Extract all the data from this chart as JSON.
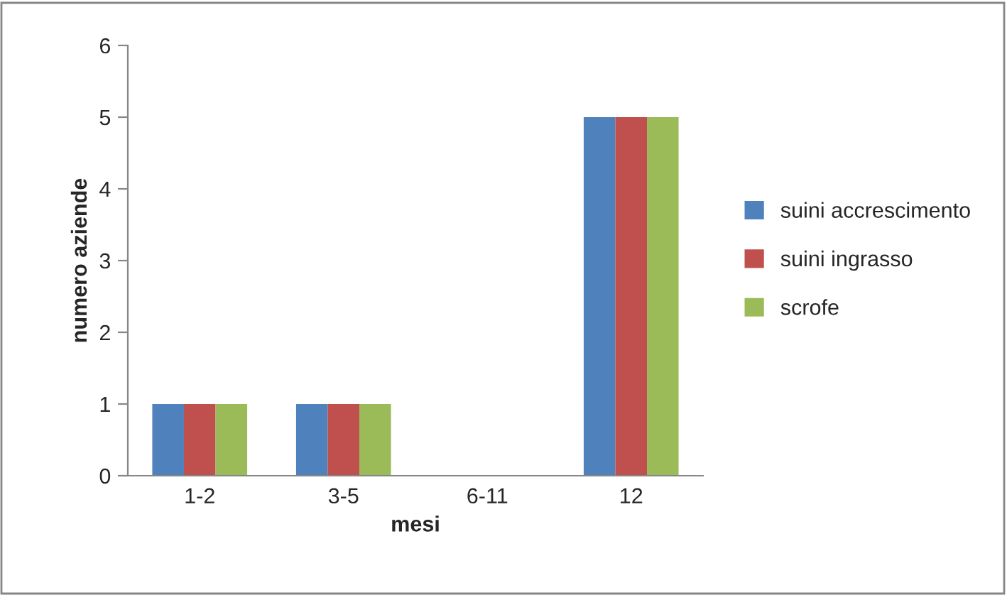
{
  "chart_data": {
    "type": "bar",
    "xlabel": "mesi",
    "ylabel": "numero aziende",
    "categories": [
      "1-2",
      "3-5",
      "6-11",
      "12"
    ],
    "series": [
      {
        "name": "suini accrescimento",
        "color": "#4f81bd",
        "values": [
          1,
          1,
          0,
          5
        ]
      },
      {
        "name": "suini ingrasso",
        "color": "#c0504d",
        "values": [
          1,
          1,
          0,
          5
        ]
      },
      {
        "name": "scrofe",
        "color": "#9bbb59",
        "values": [
          1,
          1,
          0,
          5
        ]
      }
    ],
    "ylim": [
      0,
      6
    ],
    "yticks": [
      0,
      1,
      2,
      3,
      4,
      5,
      6
    ],
    "grid": false,
    "legend": "right"
  }
}
